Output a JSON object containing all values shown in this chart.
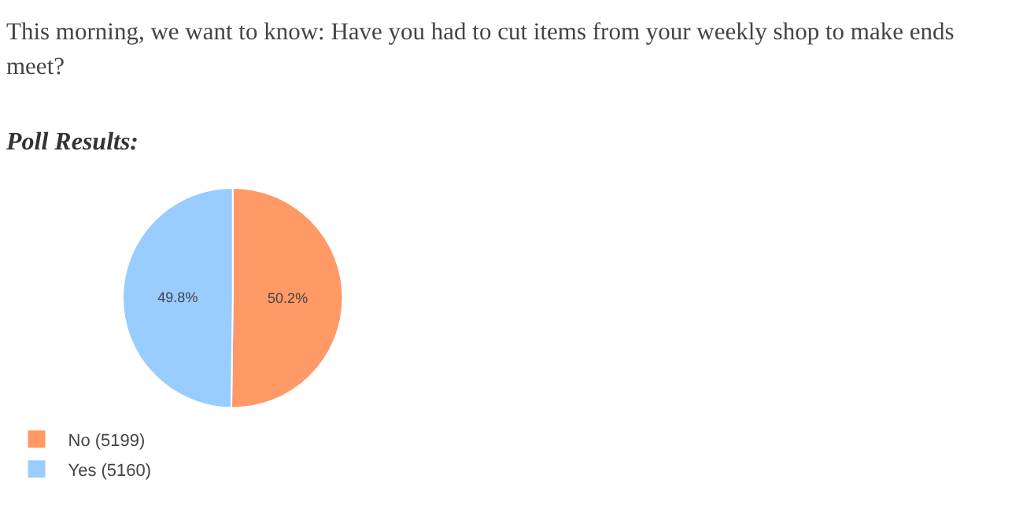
{
  "chart_data": {
    "type": "pie",
    "title": "This morning, we want to know: Have you had to cut items from your weekly shop to make ends meet?",
    "subtitle": "Poll Results:",
    "categories": [
      "No (5199)",
      "Yes (5160)"
    ],
    "values": [
      50.2,
      49.8
    ],
    "colors": [
      "#ff9966",
      "#99ccff"
    ],
    "value_labels": [
      "50.2%",
      "49.8%"
    ],
    "legend": "bottom left"
  }
}
